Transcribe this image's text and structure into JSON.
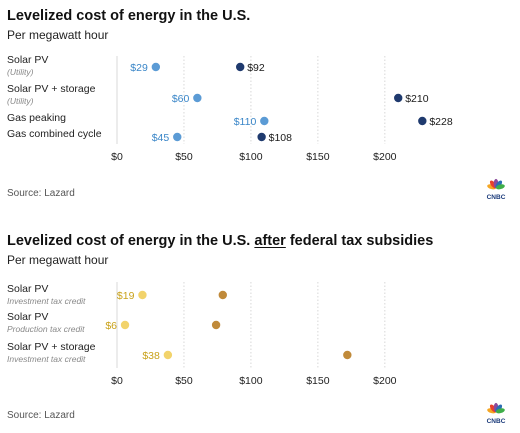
{
  "chart_data": [
    {
      "type": "dumbbell",
      "title": "Levelized cost of energy in the U.S.",
      "subtitle": "Per megawatt hour",
      "source": "Source: Lazard",
      "xlim": [
        0,
        230
      ],
      "x_ticks": [
        0,
        50,
        100,
        150,
        200
      ],
      "x_tick_labels": [
        "$0",
        "$50",
        "$100",
        "$150",
        "$200"
      ],
      "categories": [
        {
          "label": "Solar PV",
          "note": "(Utility)",
          "low": 29,
          "high": 92,
          "low_label": "$29",
          "high_label": "$92"
        },
        {
          "label": "Solar PV + storage",
          "note": "(Utility)",
          "low": 60,
          "high": 210,
          "low_label": "$60",
          "high_label": "$210"
        },
        {
          "label": "Gas peaking",
          "note": "",
          "low": 110,
          "high": 228,
          "low_label": "$110",
          "high_label": "$228"
        },
        {
          "label": "Gas combined cycle",
          "note": "",
          "low": 45,
          "high": 108,
          "low_label": "$45",
          "high_label": "$108"
        }
      ],
      "colors": {
        "low": "#5b9bd5",
        "high": "#1f3a6e",
        "bar_start": "#a9c7e8",
        "bar_end": "#7f9ab8",
        "low_text": "#3a86c8",
        "high_text": "#1a1a1a"
      },
      "grid": true
    },
    {
      "type": "dumbbell",
      "title_before": "Levelized cost of energy in the U.S. ",
      "title_emph": "after",
      "title_after": " federal tax subsidies",
      "subtitle": "Per megawatt hour",
      "source": "Source: Lazard",
      "xlim": [
        0,
        230
      ],
      "x_ticks": [
        0,
        50,
        100,
        150,
        200
      ],
      "x_tick_labels": [
        "$0",
        "$50",
        "$100",
        "$150",
        "$200"
      ],
      "categories": [
        {
          "label": "Solar PV",
          "note": "Investment tax credit",
          "low": 19,
          "high": 79,
          "low_label": "$19"
        },
        {
          "label": "Solar PV",
          "note": "Production tax credit",
          "low": 6,
          "high": 74,
          "low_label": "$6"
        },
        {
          "label": "Solar PV + storage",
          "note": "Investment tax credit",
          "low": 38,
          "high": 172,
          "low_label": "$38"
        }
      ],
      "colors": {
        "low": "#f2d36b",
        "high": "#c08a3a",
        "bar_start": "#f3e3a6",
        "bar_end": "#e8b8a0",
        "low_text": "#c9a21a"
      },
      "grid": true
    }
  ],
  "branding": {
    "logo_text": "CNBC",
    "logo_colors": [
      "#f5a623",
      "#e8412c",
      "#8b4a9c",
      "#2b6db3",
      "#3fae49",
      "#f2c500"
    ]
  }
}
